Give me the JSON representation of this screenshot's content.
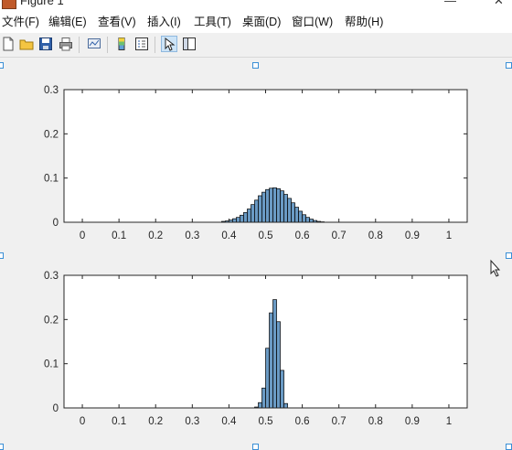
{
  "window": {
    "title": "Figure 1",
    "minimize_glyph": "—",
    "close_glyph": "✕"
  },
  "menu": [
    {
      "label": "文件(F)"
    },
    {
      "label": "编辑(E)"
    },
    {
      "label": "查看(V)"
    },
    {
      "label": "插入(I)"
    },
    {
      "label": "工具(T)"
    },
    {
      "label": "桌面(D)"
    },
    {
      "label": "窗口(W)"
    },
    {
      "label": "帮助(H)"
    }
  ],
  "toolbar": [
    {
      "icon": "new-figure-icon"
    },
    {
      "icon": "open-file-icon"
    },
    {
      "icon": "save-icon"
    },
    {
      "icon": "print-icon"
    },
    {
      "icon": "link-plot-icon"
    },
    {
      "icon": "insert-colorbar-icon"
    },
    {
      "icon": "insert-legend-icon"
    },
    {
      "icon": "edit-plot-icon",
      "active": true
    },
    {
      "icon": "property-inspector-icon"
    }
  ],
  "colors": {
    "bar_fill": "#6a9ac4",
    "bar_edge": "#000000",
    "axes_bg": "#ffffff",
    "figure_bg": "#f0f0f0"
  },
  "chart_data": [
    {
      "type": "bar",
      "xlim": [
        -0.05,
        1.05
      ],
      "ylim": [
        0,
        0.3
      ],
      "xticks": [
        "0",
        "0.1",
        "0.2",
        "0.3",
        "0.4",
        "0.5",
        "0.6",
        "0.7",
        "0.8",
        "0.9",
        "1"
      ],
      "yticks": [
        "0",
        "0.1",
        "0.2",
        "0.3"
      ],
      "bin_width": 0.01,
      "x": [
        0.38,
        0.39,
        0.4,
        0.41,
        0.42,
        0.43,
        0.44,
        0.45,
        0.46,
        0.47,
        0.48,
        0.49,
        0.5,
        0.51,
        0.52,
        0.53,
        0.54,
        0.55,
        0.56,
        0.57,
        0.58,
        0.59,
        0.6,
        0.61,
        0.62,
        0.63,
        0.64,
        0.65
      ],
      "values": [
        0.002,
        0.003,
        0.005,
        0.008,
        0.011,
        0.016,
        0.022,
        0.03,
        0.04,
        0.05,
        0.06,
        0.068,
        0.074,
        0.077,
        0.078,
        0.076,
        0.071,
        0.063,
        0.054,
        0.044,
        0.034,
        0.025,
        0.017,
        0.011,
        0.007,
        0.004,
        0.002,
        0.001
      ],
      "title": "",
      "xlabel": "",
      "ylabel": ""
    },
    {
      "type": "bar",
      "xlim": [
        -0.05,
        1.05
      ],
      "ylim": [
        0,
        0.3
      ],
      "xticks": [
        "0",
        "0.1",
        "0.2",
        "0.3",
        "0.4",
        "0.5",
        "0.6",
        "0.7",
        "0.8",
        "0.9",
        "1"
      ],
      "yticks": [
        "0",
        "0.1",
        "0.2",
        "0.3"
      ],
      "bin_width": 0.01,
      "x": [
        0.47,
        0.48,
        0.49,
        0.5,
        0.51,
        0.52,
        0.53,
        0.54,
        0.55
      ],
      "values": [
        0.002,
        0.012,
        0.045,
        0.135,
        0.215,
        0.245,
        0.195,
        0.085,
        0.01
      ],
      "title": "",
      "xlabel": "",
      "ylabel": ""
    }
  ]
}
